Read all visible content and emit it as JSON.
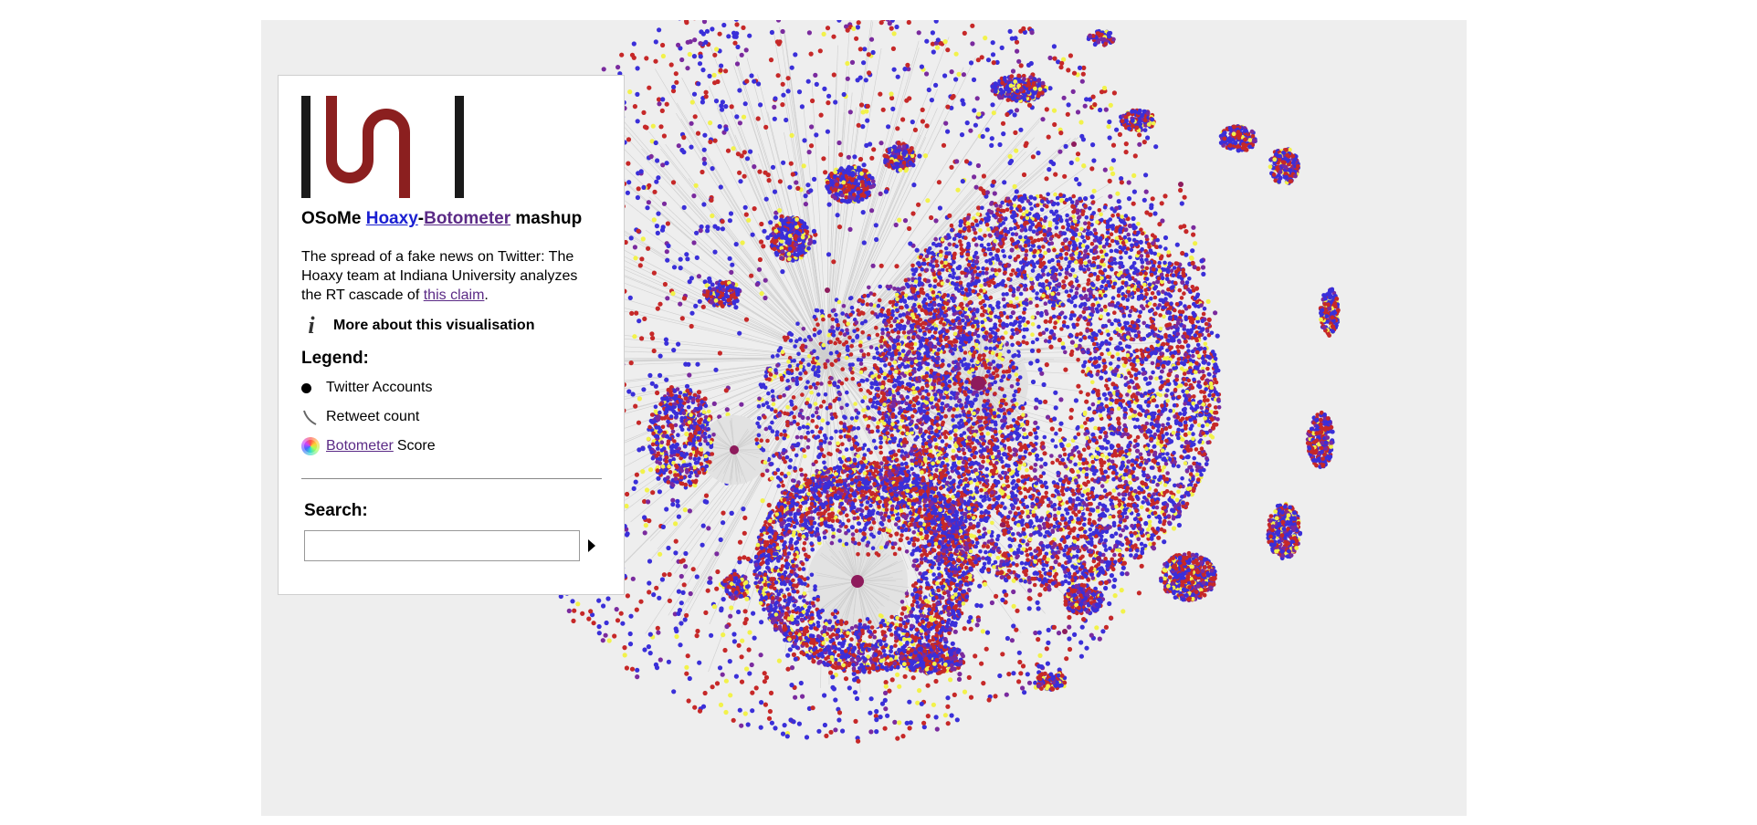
{
  "header": {
    "title_prefix": "OSoMe ",
    "hoaxy_label": "Hoaxy",
    "dash": "-",
    "botometer_label": "Botometer",
    "title_suffix": " mashup"
  },
  "description": {
    "text": "The spread of a fake news on Twitter: The Hoaxy team at Indiana University analyzes the RT cascade of ",
    "link_label": "this claim",
    "end": "."
  },
  "more_info": {
    "icon": "info-icon",
    "label": "More about this visualisation"
  },
  "legend": {
    "title": "Legend:",
    "items": [
      {
        "icon": "node-dot-icon",
        "label": "Twitter Accounts"
      },
      {
        "icon": "edge-line-icon",
        "label": "Retweet count"
      },
      {
        "icon": "color-wheel-icon",
        "link_label": "Botometer",
        "label": " Score"
      }
    ]
  },
  "search": {
    "title": "Search:",
    "value": "",
    "placeholder": "",
    "submit_icon": "play-triangle-icon"
  },
  "colors": {
    "stage_bg": "#eeeeee",
    "node_blue": "#3a2fd9",
    "node_red": "#c62828",
    "node_purple": "#7a2a9e",
    "node_yellow": "#f2f24a",
    "hub": "#8e1b5c",
    "logo_red": "#8b1f1f",
    "logo_black": "#1a1a1a"
  }
}
